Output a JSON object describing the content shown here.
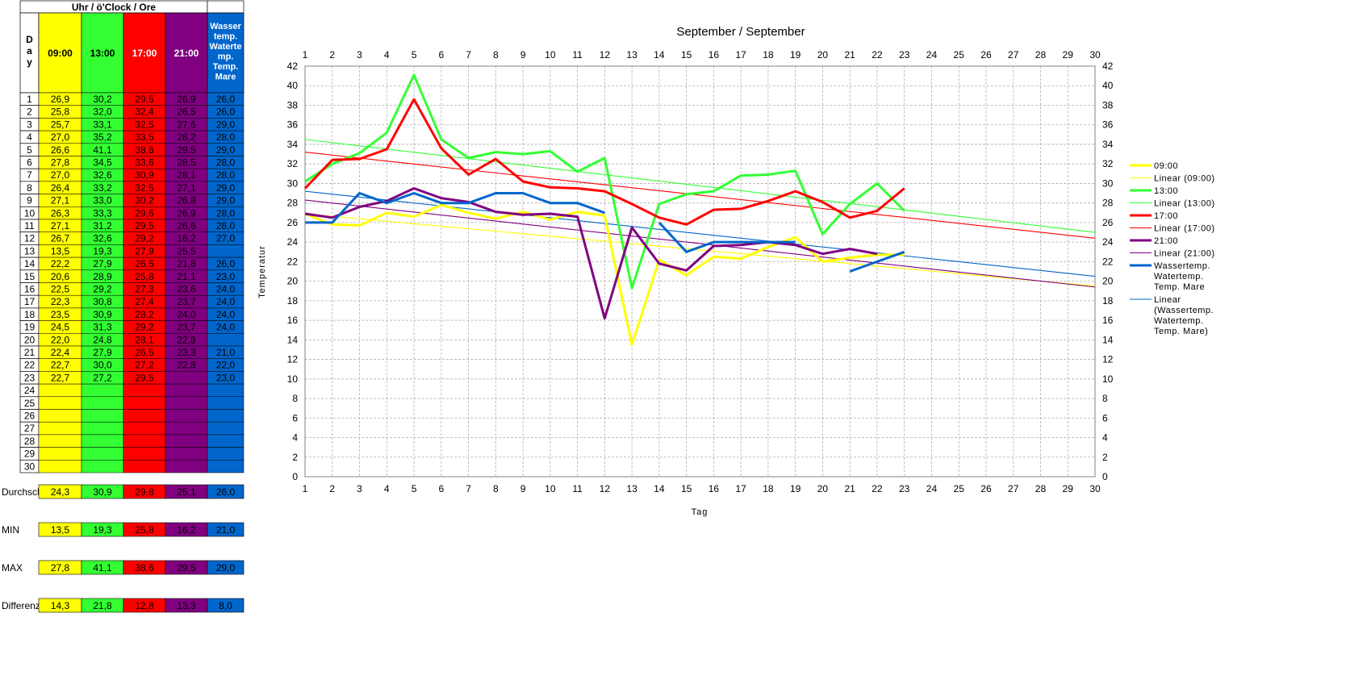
{
  "table": {
    "header_top": "Uhr / ö'Clock / Ore",
    "day_header": "Day",
    "col_headers": [
      "09:00",
      "13:00",
      "17:00",
      "21:00",
      "Wasser temp. Waterte mp. Temp. Mare"
    ],
    "col_colors": [
      "#ffff00",
      "#33ff33",
      "#ff0000",
      "#800080",
      "#0066cc"
    ],
    "col_text_colors": [
      "#000000",
      "#000000",
      "#ffffff",
      "#ffffff",
      "#ffffff"
    ],
    "days": [
      "1",
      "2",
      "3",
      "4",
      "5",
      "6",
      "7",
      "8",
      "9",
      "10",
      "11",
      "12",
      "13",
      "14",
      "15",
      "16",
      "17",
      "18",
      "19",
      "20",
      "21",
      "22",
      "23",
      "24",
      "25",
      "26",
      "27",
      "28",
      "29",
      "30"
    ],
    "rows": [
      [
        "26,9",
        "30,2",
        "29,5",
        "26,9",
        "26,0"
      ],
      [
        "25,8",
        "32,0",
        "32,4",
        "26,5",
        "26,0"
      ],
      [
        "25,7",
        "33,1",
        "32,5",
        "27,6",
        "29,0"
      ],
      [
        "27,0",
        "35,2",
        "33,5",
        "28,2",
        "28,0"
      ],
      [
        "26,6",
        "41,1",
        "38,6",
        "29,5",
        "29,0"
      ],
      [
        "27,8",
        "34,5",
        "33,6",
        "28,5",
        "28,0"
      ],
      [
        "27,0",
        "32,6",
        "30,9",
        "28,1",
        "28,0"
      ],
      [
        "26,4",
        "33,2",
        "32,5",
        "27,1",
        "29,0"
      ],
      [
        "27,1",
        "33,0",
        "30,2",
        "26,8",
        "29,0"
      ],
      [
        "26,3",
        "33,3",
        "29,6",
        "26,9",
        "28,0"
      ],
      [
        "27,1",
        "31,2",
        "29,5",
        "26,6",
        "28,0"
      ],
      [
        "26,7",
        "32,6",
        "29,2",
        "16,2",
        "27,0"
      ],
      [
        "13,5",
        "19,3",
        "27,9",
        "25,5",
        ""
      ],
      [
        "22,2",
        "27,9",
        "26,5",
        "21,8",
        "26,0"
      ],
      [
        "20,6",
        "28,9",
        "25,8",
        "21,1",
        "23,0"
      ],
      [
        "22,5",
        "29,2",
        "27,3",
        "23,6",
        "24,0"
      ],
      [
        "22,3",
        "30,8",
        "27,4",
        "23,7",
        "24,0"
      ],
      [
        "23,5",
        "30,9",
        "28,2",
        "24,0",
        "24,0"
      ],
      [
        "24,5",
        "31,3",
        "29,2",
        "23,7",
        "24,0"
      ],
      [
        "22,0",
        "24,8",
        "28,1",
        "22,8",
        ""
      ],
      [
        "22,4",
        "27,9",
        "26,5",
        "23,3",
        "21,0"
      ],
      [
        "22,7",
        "30,0",
        "27,2",
        "22,8",
        "22,0"
      ],
      [
        "22,7",
        "27,2",
        "29,5",
        "",
        "23,0"
      ],
      [
        "",
        "",
        "",
        "",
        ""
      ],
      [
        "",
        "",
        "",
        "",
        ""
      ],
      [
        "",
        "",
        "",
        "",
        ""
      ],
      [
        "",
        "",
        "",
        "",
        ""
      ],
      [
        "",
        "",
        "",
        "",
        ""
      ],
      [
        "",
        "",
        "",
        "",
        ""
      ],
      [
        "",
        "",
        "",
        "",
        ""
      ]
    ],
    "summary": [
      {
        "label": "Durchschni",
        "values": [
          "24,3",
          "30,9",
          "29,8",
          "25,1",
          "26,0"
        ]
      },
      {
        "label": "MIN",
        "values": [
          "13,5",
          "19,3",
          "25,8",
          "16,2",
          "21,0"
        ]
      },
      {
        "label": "MAX",
        "values": [
          "27,8",
          "41,1",
          "38,6",
          "29,5",
          "29,0"
        ]
      },
      {
        "label": "Differenz",
        "values": [
          "14,3",
          "21,8",
          "12,8",
          "13,3",
          "8,0"
        ]
      }
    ]
  },
  "chart_data": {
    "type": "line",
    "title": "September / September",
    "xlabel": "Tag",
    "ylabel": "Temperatur",
    "x": [
      1,
      2,
      3,
      4,
      5,
      6,
      7,
      8,
      9,
      10,
      11,
      12,
      13,
      14,
      15,
      16,
      17,
      18,
      19,
      20,
      21,
      22,
      23,
      24,
      25,
      26,
      27,
      28,
      29,
      30
    ],
    "xlim": [
      1,
      30
    ],
    "ylim": [
      0,
      42
    ],
    "ytick_step": 2,
    "grid": true,
    "legend_position": "right",
    "series": [
      {
        "name": "09:00",
        "color": "#ffff00",
        "values": [
          26.9,
          25.8,
          25.7,
          27.0,
          26.6,
          27.8,
          27.0,
          26.4,
          27.1,
          26.3,
          27.1,
          26.7,
          13.5,
          22.2,
          20.6,
          22.5,
          22.3,
          23.5,
          24.5,
          22.0,
          22.4,
          22.7,
          22.7,
          null,
          null,
          null,
          null,
          null,
          null,
          null
        ]
      },
      {
        "name": "13:00",
        "color": "#33ff33",
        "values": [
          30.2,
          32.0,
          33.1,
          35.2,
          41.1,
          34.5,
          32.6,
          33.2,
          33.0,
          33.3,
          31.2,
          32.6,
          19.3,
          27.9,
          28.9,
          29.2,
          30.8,
          30.9,
          31.3,
          24.8,
          27.9,
          30.0,
          27.2,
          null,
          null,
          null,
          null,
          null,
          null,
          null
        ]
      },
      {
        "name": "17:00",
        "color": "#ff0000",
        "values": [
          29.5,
          32.4,
          32.5,
          33.5,
          38.6,
          33.6,
          30.9,
          32.5,
          30.2,
          29.6,
          29.5,
          29.2,
          27.9,
          26.5,
          25.8,
          27.3,
          27.4,
          28.2,
          29.2,
          28.1,
          26.5,
          27.2,
          29.5,
          null,
          null,
          null,
          null,
          null,
          null,
          null
        ]
      },
      {
        "name": "21:00",
        "color": "#800080",
        "values": [
          26.9,
          26.5,
          27.6,
          28.2,
          29.5,
          28.5,
          28.1,
          27.1,
          26.8,
          26.9,
          26.6,
          16.2,
          25.5,
          21.8,
          21.1,
          23.6,
          23.7,
          24.0,
          23.7,
          22.8,
          23.3,
          22.8,
          null,
          null,
          null,
          null,
          null,
          null,
          null,
          null
        ]
      },
      {
        "name": "Wassertemp. Watertemp. Temp. Mare",
        "color": "#0066cc",
        "values": [
          26.0,
          26.0,
          29.0,
          28.0,
          29.0,
          28.0,
          28.0,
          29.0,
          29.0,
          28.0,
          28.0,
          27.0,
          null,
          26.0,
          23.0,
          24.0,
          24.0,
          24.0,
          24.0,
          null,
          21.0,
          22.0,
          23.0,
          null,
          null,
          null,
          null,
          null,
          null,
          null
        ]
      }
    ],
    "trendlines": [
      {
        "name": "Linear (09:00)",
        "color": "#ffff00",
        "start": [
          1,
          26.9
        ],
        "end": [
          30,
          19.5
        ]
      },
      {
        "name": "Linear (13:00)",
        "color": "#33ff33",
        "start": [
          1,
          34.5
        ],
        "end": [
          30,
          25.0
        ]
      },
      {
        "name": "Linear (17:00)",
        "color": "#ff0000",
        "start": [
          1,
          33.2
        ],
        "end": [
          30,
          24.4
        ]
      },
      {
        "name": "Linear (21:00)",
        "color": "#800080",
        "start": [
          1,
          28.3
        ],
        "end": [
          30,
          19.4
        ]
      },
      {
        "name": "Linear (Wassertemp. Watertemp. Temp. Mare)",
        "color": "#0066cc",
        "start": [
          1,
          29.2
        ],
        "end": [
          30,
          20.5
        ]
      }
    ]
  }
}
